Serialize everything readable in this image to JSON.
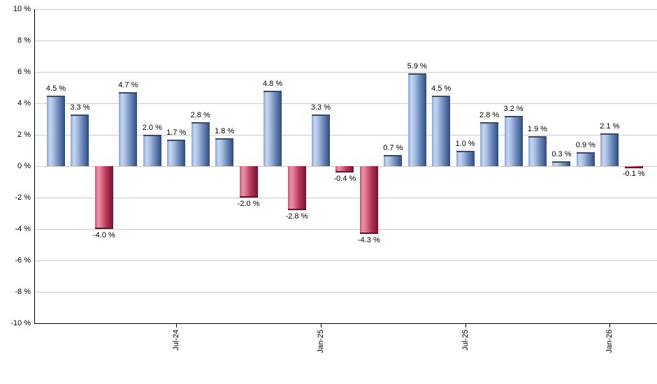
{
  "chart_data": {
    "type": "bar",
    "title": "",
    "xlabel": "",
    "ylabel": "",
    "ylim": [
      -10,
      10
    ],
    "y_tick_step": 2,
    "grid": "horizontal-on",
    "legend": "none",
    "values": [
      4.5,
      3.3,
      -4.0,
      4.7,
      2.0,
      1.7,
      2.8,
      1.8,
      -2.0,
      4.8,
      -2.8,
      3.3,
      -0.4,
      -4.3,
      0.7,
      5.9,
      4.5,
      1.0,
      2.8,
      3.2,
      1.9,
      0.3,
      0.9,
      2.1,
      -0.1
    ],
    "bar_labels": [
      "4.5 %",
      "3.3 %",
      "-4.0 %",
      "4.7 %",
      "2.0 %",
      "1.7 %",
      "2.8 %",
      "1.8 %",
      "-2.0 %",
      "4.8 %",
      "-2.8 %",
      "3.3 %",
      "-0.4 %",
      "-4.3 %",
      "0.7 %",
      "5.9 %",
      "4.5 %",
      "1.0 %",
      "2.8 %",
      "3.2 %",
      "1.9 %",
      "0.3 %",
      "0.9 %",
      "2.1 %",
      "-0.1 %"
    ],
    "x_ticks": [
      {
        "index": 5,
        "label": "Jul-24"
      },
      {
        "index": 11,
        "label": "Jan-25"
      },
      {
        "index": 17,
        "label": "Jul-25"
      },
      {
        "index": 23,
        "label": "Jan-26"
      }
    ],
    "y_ticks": [
      {
        "value": 10,
        "label": "10 %"
      },
      {
        "value": 8,
        "label": "8 %"
      },
      {
        "value": 6,
        "label": "6 %"
      },
      {
        "value": 4,
        "label": "4 %"
      },
      {
        "value": 2,
        "label": "2 %"
      },
      {
        "value": 0,
        "label": "0 %"
      },
      {
        "value": -2,
        "label": "-2 %"
      },
      {
        "value": -4,
        "label": "-4 %"
      },
      {
        "value": -6,
        "label": "-6 %"
      },
      {
        "value": -8,
        "label": "-8 %"
      },
      {
        "value": -10,
        "label": "-10 %"
      }
    ],
    "colors": {
      "positive_light": "#c6d6f0",
      "positive_mid": "#8ba6d6",
      "positive_dark": "#2d4a7c",
      "negative_light": "#ee93a8",
      "negative_mid": "#cf5473",
      "negative_dark": "#77122f",
      "gridline": "#cccccc",
      "axis": "#000000",
      "text": "#000000",
      "background": "#ffffff"
    }
  }
}
